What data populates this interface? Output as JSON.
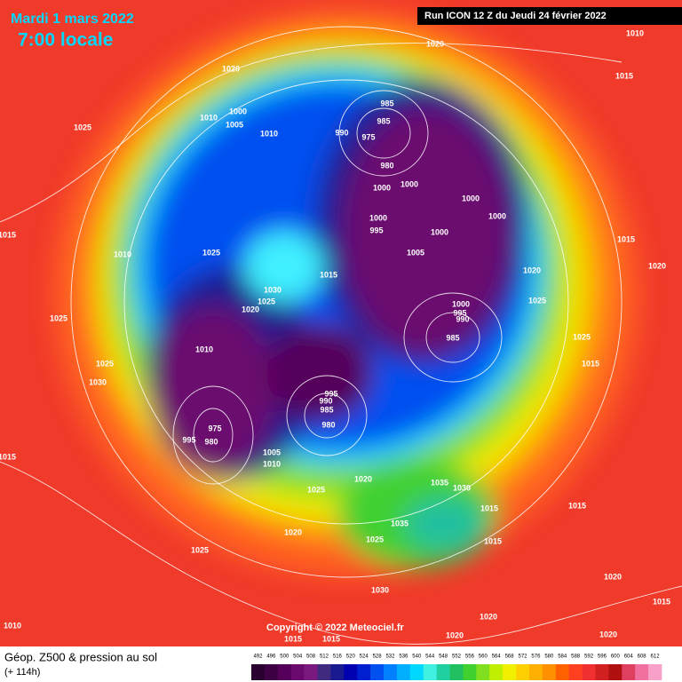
{
  "header": {
    "date": "Mardi 1 mars 2022",
    "time": "7:00 locale",
    "run": "Run ICON 12 Z du Jeudi 24 février 2022"
  },
  "copyright": "Copyright © 2022 Meteociel.fr",
  "footer": {
    "title": "Géop. Z500 & pression au sol",
    "lead": "(+ 114h)"
  },
  "scale": {
    "ticks": [
      492,
      496,
      500,
      504,
      508,
      512,
      516,
      520,
      524,
      528,
      532,
      536,
      540,
      544,
      548,
      552,
      556,
      560,
      564,
      568,
      572,
      576,
      580,
      584,
      588,
      592,
      596,
      600,
      604,
      608,
      612
    ],
    "colors": [
      "#2a0030",
      "#3d0045",
      "#55005a",
      "#6a0a6e",
      "#7a1a80",
      "#402a80",
      "#1a1a90",
      "#0000b0",
      "#0020d0",
      "#0050f0",
      "#0080ff",
      "#00b0ff",
      "#00d8ff",
      "#40f0e0",
      "#20d0a0",
      "#20c060",
      "#40d030",
      "#80e020",
      "#c0f000",
      "#f0f000",
      "#ffd000",
      "#ffb000",
      "#ff9000",
      "#ff6000",
      "#ff4020",
      "#f03030",
      "#d02020",
      "#b01010",
      "#e04060",
      "#f070a0",
      "#f8a0c8"
    ]
  },
  "pressure_labels": [
    1010,
    1020,
    1015,
    1020,
    1025,
    1010,
    1000,
    1005,
    1010,
    985,
    985,
    975,
    980,
    990,
    1000,
    1000,
    1000,
    1000,
    1000,
    995,
    1000,
    1005,
    1015,
    1030,
    1025,
    1020,
    1025,
    1010,
    1025,
    1025,
    1030,
    1010,
    1000,
    995,
    985,
    990,
    1020,
    1025,
    1025,
    1015,
    1020,
    1015,
    975,
    980,
    995,
    985,
    980,
    990,
    995,
    1005,
    1010,
    1025,
    1020,
    1035,
    1030,
    1015,
    1015,
    1035,
    1025,
    1020,
    1025,
    1015,
    1015,
    1010,
    1030,
    1020,
    1020,
    1015,
    1015,
    1015,
    1020,
    1020,
    1015
  ]
}
